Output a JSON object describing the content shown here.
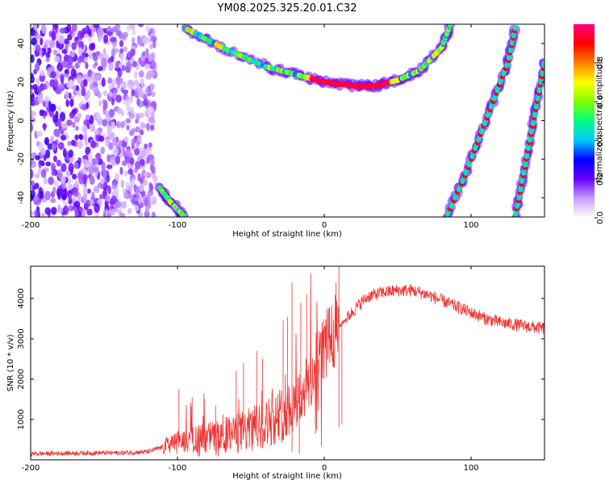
{
  "title": "YM08.2025.325.20.01.C32",
  "chart_data": [
    {
      "type": "heatmap",
      "xlabel": "Height of straight line (km)",
      "ylabel": "Frequency (Hz)",
      "xlim": [
        -200,
        150
      ],
      "ylim": [
        -50,
        50
      ],
      "xticks": [
        -200,
        -100,
        0,
        100
      ],
      "yticks": [
        -40,
        -20,
        0,
        20,
        40
      ],
      "colorbar": {
        "label": "Normalized spectral amplitude",
        "range": [
          0,
          1
        ],
        "ticks": [
          "0.0",
          "0.2",
          "0.4",
          "0.6",
          "0.8"
        ],
        "tick_values": [
          0,
          0.2,
          0.4,
          0.6,
          0.8
        ],
        "colors": [
          "#ffffff",
          "#c8a0ff",
          "#6a00ff",
          "#0000ff",
          "#00c8ff",
          "#00ff80",
          "#80ff00",
          "#ffff00",
          "#ff8000",
          "#ff0000",
          "#ff0080"
        ]
      },
      "features": [
        {
          "name": "noise-region",
          "x_range": [
            -200,
            -115
          ],
          "y_range": [
            -50,
            50
          ]
        },
        {
          "name": "main-curve",
          "points": [
            [
              -95,
              48
            ],
            [
              -70,
              38
            ],
            [
              -40,
              28
            ],
            [
              -20,
              24
            ],
            [
              0,
              20
            ],
            [
              20,
              18
            ],
            [
              35,
              18
            ],
            [
              50,
              21
            ],
            [
              65,
              26
            ],
            [
              80,
              38
            ],
            [
              86,
              50
            ]
          ]
        },
        {
          "name": "lower-left-branch",
          "points": [
            [
              -112,
              -35
            ],
            [
              -105,
              -42
            ],
            [
              -95,
              -50
            ]
          ]
        },
        {
          "name": "right-branch-1",
          "points": [
            [
              83,
              -50
            ],
            [
              95,
              -30
            ],
            [
              105,
              -10
            ],
            [
              115,
              10
            ],
            [
              125,
              30
            ],
            [
              130,
              48
            ]
          ]
        },
        {
          "name": "right-branch-2",
          "points": [
            [
              130,
              -50
            ],
            [
              135,
              -30
            ],
            [
              140,
              -10
            ],
            [
              145,
              10
            ],
            [
              150,
              30
            ]
          ]
        }
      ]
    },
    {
      "type": "line",
      "xlabel": "Height of straight line (km)",
      "ylabel": "SNR (10 * v/v)",
      "xlim": [
        -200,
        150
      ],
      "ylim": [
        0,
        4800
      ],
      "xticks": [
        -200,
        -100,
        0,
        100
      ],
      "yticks": [
        1000,
        2000,
        3000,
        4000
      ],
      "color": "#ee3333",
      "series": [
        {
          "name": "SNR",
          "x": [
            -200,
            -180,
            -160,
            -140,
            -120,
            -110,
            -100,
            -90,
            -80,
            -70,
            -60,
            -50,
            -40,
            -30,
            -20,
            -10,
            -5,
            0,
            5,
            10,
            15,
            20,
            25,
            30,
            40,
            50,
            60,
            70,
            80,
            90,
            100,
            110,
            120,
            130,
            140,
            150
          ],
          "values": [
            150,
            160,
            170,
            170,
            200,
            320,
            450,
            500,
            560,
            600,
            650,
            750,
            900,
            1100,
            1400,
            1900,
            2400,
            2800,
            3100,
            3300,
            3500,
            3700,
            3900,
            4050,
            4150,
            4200,
            4200,
            4100,
            3950,
            3800,
            3650,
            3500,
            3400,
            3350,
            3300,
            3250
          ],
          "spikes": [
            [
              -99,
              1750
            ],
            [
              -90,
              1550
            ],
            [
              -82,
              1650
            ],
            [
              -74,
              1350
            ],
            [
              -60,
              2200
            ],
            [
              -55,
              2400
            ],
            [
              -46,
              2700
            ],
            [
              -42,
              2500
            ],
            [
              -28,
              3450
            ],
            [
              -25,
              3550
            ],
            [
              -22,
              4400
            ],
            [
              -16,
              3900
            ],
            [
              -12,
              4100
            ],
            [
              8,
              4400
            ],
            [
              10,
              4800
            ]
          ],
          "dips": [
            [
              -22,
              200
            ],
            [
              -17,
              150
            ],
            [
              10,
              800
            ],
            [
              12,
              900
            ]
          ]
        }
      ]
    }
  ]
}
